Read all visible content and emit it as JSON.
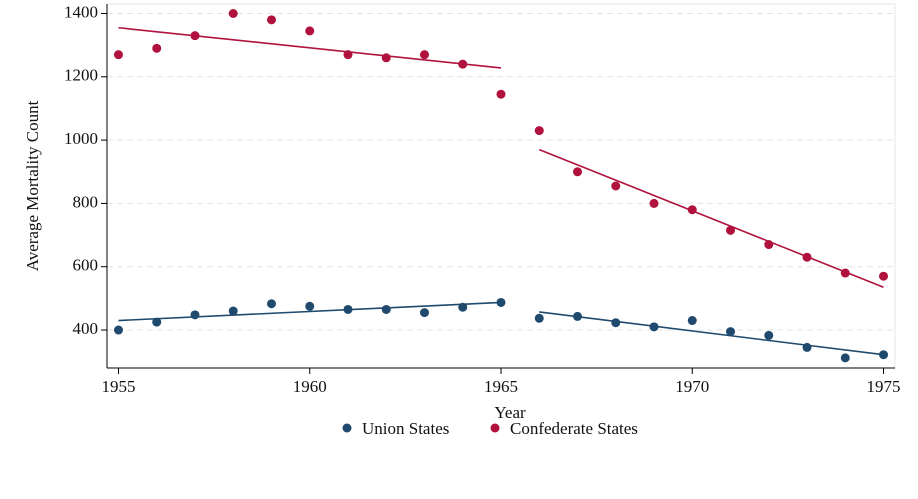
{
  "chart_data": {
    "type": "scatter",
    "x_label": "Year",
    "y_label": "Average Mortality Count",
    "x": [
      1955,
      1956,
      1957,
      1958,
      1959,
      1960,
      1961,
      1962,
      1963,
      1964,
      1965,
      1966,
      1967,
      1968,
      1969,
      1970,
      1971,
      1972,
      1973,
      1974,
      1975
    ],
    "series": [
      {
        "name": "Union States",
        "color": "#1f4a6e",
        "values": [
          400,
          425,
          448,
          460,
          483,
          475,
          465,
          465,
          455,
          472,
          487,
          437,
          443,
          423,
          410,
          430,
          395,
          383,
          345,
          312,
          322
        ],
        "fit": [
          {
            "x": [
              1955,
              1965
            ],
            "values": [
              430,
              487
            ]
          },
          {
            "x": [
              1966,
              1975
            ],
            "values": [
              457,
              322
            ]
          }
        ]
      },
      {
        "name": "Confederate States",
        "color": "#b0123d",
        "values": [
          1270,
          1290,
          1330,
          1400,
          1380,
          1345,
          1270,
          1260,
          1270,
          1240,
          1145,
          1030,
          900,
          855,
          800,
          780,
          715,
          670,
          630,
          580,
          570
        ],
        "fit": [
          {
            "x": [
              1955,
              1965
            ],
            "values": [
              1355,
              1228
            ]
          },
          {
            "x": [
              1966,
              1975
            ],
            "values": [
              970,
              535
            ]
          }
        ]
      }
    ],
    "xlim": [
      1954.7,
      1975.3
    ],
    "xticks": [
      1955,
      1960,
      1965,
      1970,
      1975
    ],
    "ylim": [
      280,
      1430
    ],
    "yticks": [
      400,
      600,
      800,
      1000,
      1200,
      1400
    ],
    "grid": true,
    "legend": "bottom"
  }
}
